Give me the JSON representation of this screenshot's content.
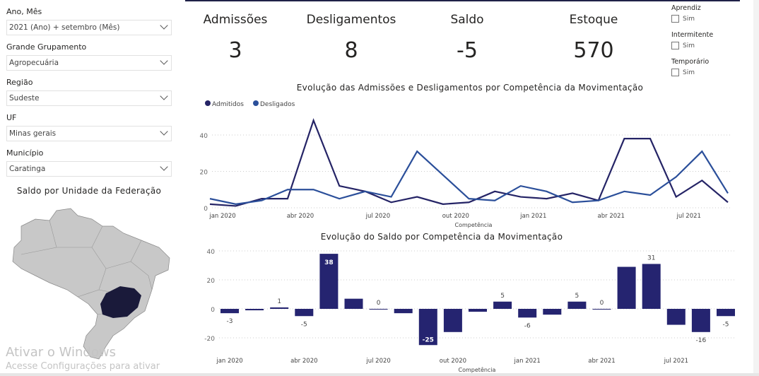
{
  "slicers": [
    {
      "label": "Ano, Mês",
      "value": "2021 (Ano) + setembro (Mês)"
    },
    {
      "label": "Grande Grupamento",
      "value": "Agropecuária"
    },
    {
      "label": "Região",
      "value": "Sudeste"
    },
    {
      "label": "UF",
      "value": "Minas gerais"
    },
    {
      "label": "Município",
      "value": "Caratinga"
    }
  ],
  "map": {
    "title": "Saldo por Unidade da Federação",
    "highlight_color": "#1a1a3a",
    "base_color": "#c8c8c8"
  },
  "kpis": [
    {
      "title": "Admissões",
      "value": "3"
    },
    {
      "title": "Desligamentos",
      "value": "8"
    },
    {
      "title": "Saldo",
      "value": "-5"
    },
    {
      "title": "Estoque",
      "value": "570"
    }
  ],
  "filters": [
    {
      "label": "Aprendiz",
      "option": "Sim",
      "checked": false
    },
    {
      "label": "Intermitente",
      "option": "Sim",
      "checked": false
    },
    {
      "label": "Temporário",
      "option": "Sim",
      "checked": false
    }
  ],
  "chart_data": [
    {
      "type": "line",
      "title": "Evolução das Admissões e Desligamentos por Competência da Movimentação",
      "xlabel": "Competência",
      "ylabel": "",
      "ylim": [
        0,
        50
      ],
      "yticks": [
        0,
        20,
        40
      ],
      "grid": true,
      "legend": "top-left",
      "x": [
        "jan 2020",
        "fev 2020",
        "mar 2020",
        "abr 2020",
        "mai 2020",
        "jun 2020",
        "jul 2020",
        "ago 2020",
        "set 2020",
        "out 2020",
        "nov 2020",
        "dez 2020",
        "jan 2021",
        "fev 2021",
        "mar 2021",
        "abr 2021",
        "mai 2021",
        "jun 2021",
        "jul 2021",
        "ago 2021",
        "set 2021"
      ],
      "xtick_labels": [
        "jan 2020",
        "abr 2020",
        "jul 2020",
        "out 2020",
        "jan 2021",
        "abr 2021",
        "jul 2021"
      ],
      "series": [
        {
          "name": "Admitidos",
          "color": "#252466",
          "values": [
            2,
            1,
            5,
            5,
            48,
            12,
            9,
            3,
            6,
            2,
            3,
            9,
            6,
            5,
            8,
            4,
            38,
            38,
            6,
            15,
            3
          ]
        },
        {
          "name": "Desligados",
          "color": "#2b4f9a",
          "values": [
            5,
            2,
            4,
            10,
            10,
            5,
            9,
            6,
            31,
            18,
            5,
            4,
            12,
            9,
            3,
            4,
            9,
            7,
            17,
            31,
            8
          ]
        }
      ]
    },
    {
      "type": "bar",
      "title": "Evolução do Saldo por Competência da Movimentação",
      "xlabel": "Competência",
      "ylabel": "",
      "ylim": [
        -25,
        40
      ],
      "yticks": [
        -20,
        0,
        20,
        40
      ],
      "grid": true,
      "color": "#252470",
      "x": [
        "jan 2020",
        "fev 2020",
        "mar 2020",
        "abr 2020",
        "mai 2020",
        "jun 2020",
        "jul 2020",
        "ago 2020",
        "set 2020",
        "out 2020",
        "nov 2020",
        "dez 2020",
        "jan 2021",
        "fev 2021",
        "mar 2021",
        "abr 2021",
        "mai 2021",
        "jun 2021",
        "jul 2021",
        "ago 2021",
        "set 2021"
      ],
      "xtick_labels": [
        "jan 2020",
        "abr 2020",
        "jul 2020",
        "out 2020",
        "jan 2021",
        "abr 2021",
        "jul 2021"
      ],
      "values": [
        -3,
        -1,
        1,
        -5,
        38,
        7,
        0,
        -3,
        -25,
        -16,
        -2,
        5,
        -6,
        -4,
        5,
        0,
        29,
        31,
        -11,
        -16,
        -5
      ],
      "labeled": [
        0,
        2,
        3,
        4,
        6,
        8,
        11,
        12,
        14,
        15,
        17,
        19,
        20
      ]
    }
  ],
  "watermark": {
    "line1": "Ativar o Windows",
    "line2": "Acesse Configurações para ativar"
  }
}
